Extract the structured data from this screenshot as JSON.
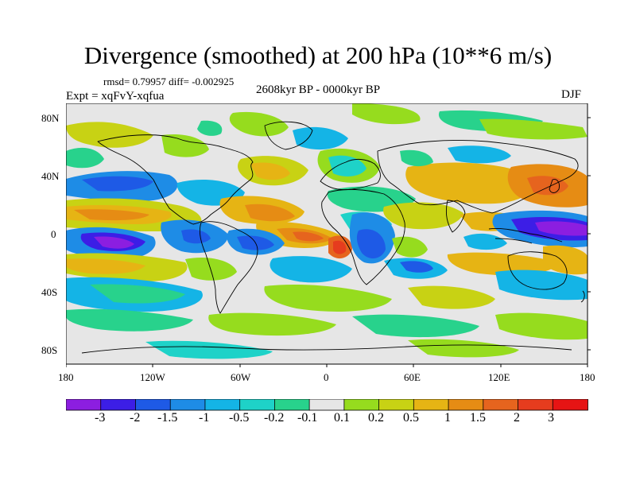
{
  "title": "Divergence (smoothed) at 200 hPa (10**6 m/s)",
  "stats": "rmsd= 0.79957 diff= -0.002925",
  "experiment": "Expt = xqFvY-xqfua",
  "period": "2608kyr BP - 0000kyr BP",
  "season": "DJF",
  "axes": {
    "lat_labels": [
      "80N",
      "40N",
      "0",
      "40S",
      "80S"
    ],
    "lat_values": [
      80,
      40,
      0,
      -40,
      -80
    ],
    "lon_labels": [
      "180",
      "120W",
      "60W",
      "0",
      "60E",
      "120E",
      "180"
    ],
    "lon_values": [
      -180,
      -120,
      -60,
      0,
      60,
      120,
      180
    ],
    "lon_range": [
      -180,
      180
    ],
    "lat_range": [
      -90,
      90
    ]
  },
  "colorbar": {
    "labels": [
      "-3",
      "-2",
      "-1.5",
      "-1",
      "-0.5",
      "-0.2",
      "-0.1",
      "0.1",
      "0.2",
      "0.5",
      "1",
      "1.5",
      "2",
      "3"
    ],
    "colors": [
      "#8c1ee0",
      "#3c1ee6",
      "#1e5ae6",
      "#1e8ce6",
      "#14b4e6",
      "#1ed2c8",
      "#28d28c",
      "#e6e6e6",
      "#96dc1e",
      "#c8d214",
      "#e6b414",
      "#e68c14",
      "#e6641e",
      "#e63c1e",
      "#e61414"
    ]
  },
  "colors": {
    "background_field": "#e6e6e6"
  }
}
